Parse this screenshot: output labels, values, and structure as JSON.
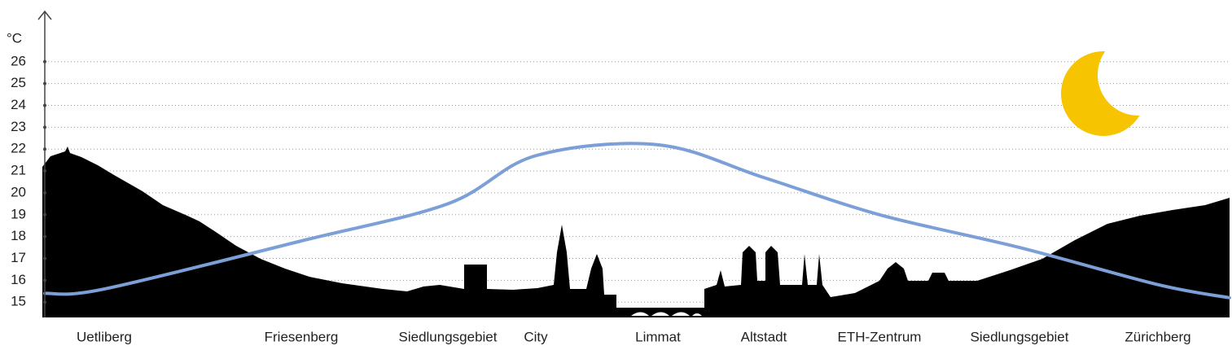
{
  "chart_data": {
    "type": "line",
    "y_label": "°C",
    "categories": [
      null,
      "Uetliberg",
      "Friesenberg",
      "Siedlungsgebiet",
      "City",
      "Limmat",
      "Altstadt",
      "ETH-Zentrum",
      "Siedlungsgebiet",
      "Zürichberg",
      null
    ],
    "values": [
      15.4,
      15.6,
      17.8,
      19.5,
      21.7,
      22.2,
      20.7,
      19.0,
      17.5,
      15.8,
      15.2
    ],
    "color": "#7b9fd6",
    "ylim": [
      14.3,
      28.3
    ],
    "yticks": [
      15,
      16,
      17,
      18,
      19,
      20,
      21,
      22,
      23,
      24,
      25,
      26
    ],
    "grid": true
  }
}
